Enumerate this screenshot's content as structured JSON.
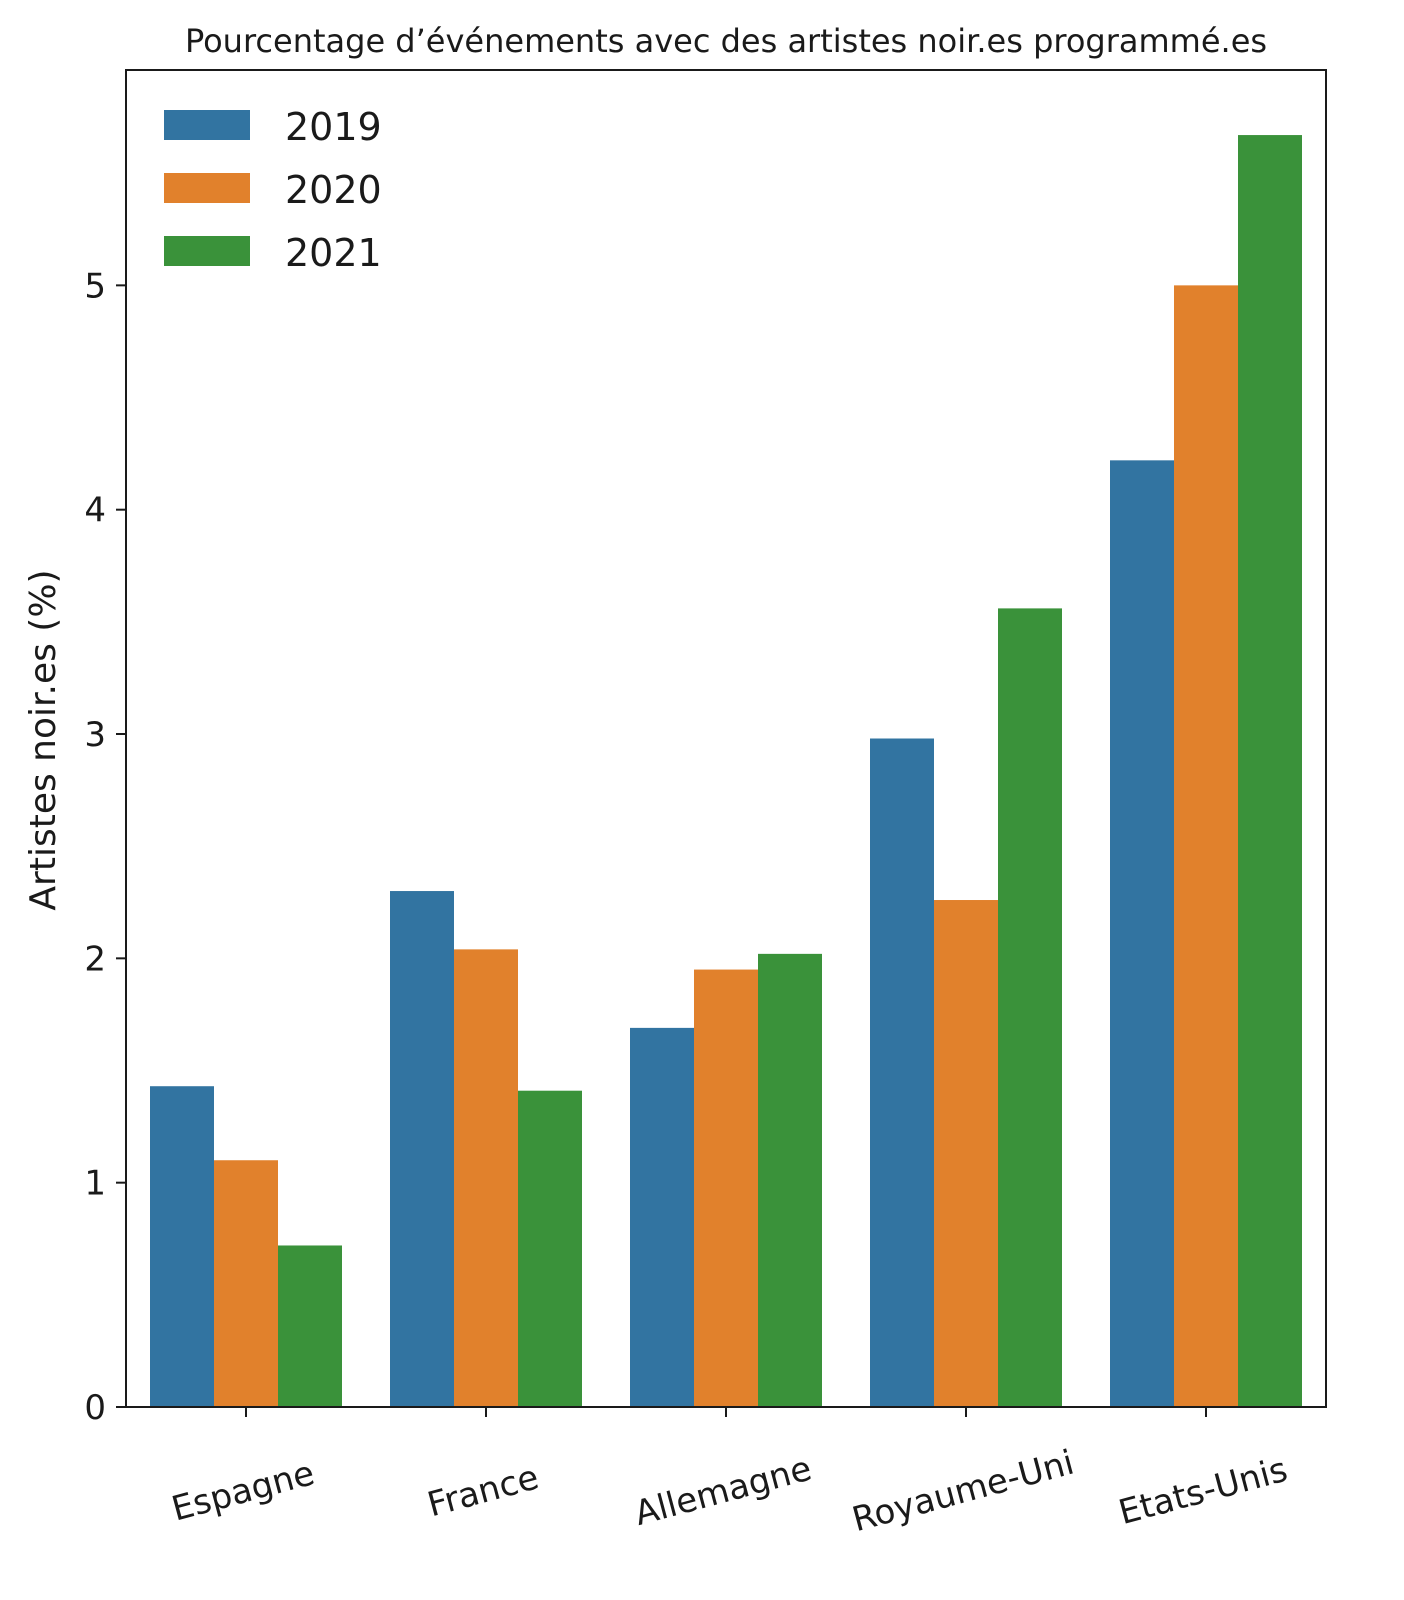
{
  "chart_data": {
    "type": "bar",
    "title": "Pourcentage d’événements avec des artistes noir.es programmé.es",
    "xlabel": "",
    "ylabel": "Artistes noir.es (%)",
    "ylim": [
      0,
      5.96
    ],
    "yticks": [
      0,
      1,
      2,
      3,
      4,
      5
    ],
    "grid": false,
    "legend_position": "top-left",
    "categories": [
      "Espagne",
      "France",
      "Allemagne",
      "Royaume-Uni",
      "Etats-Unis"
    ],
    "series": [
      {
        "name": "2019",
        "color": "#3274a1",
        "values": [
          1.43,
          2.3,
          1.69,
          2.98,
          4.22
        ]
      },
      {
        "name": "2020",
        "color": "#e1812c",
        "values": [
          1.1,
          2.04,
          1.95,
          2.26,
          5.0
        ]
      },
      {
        "name": "2021",
        "color": "#3a923a",
        "values": [
          0.72,
          1.41,
          2.02,
          3.56,
          5.67
        ]
      }
    ]
  }
}
